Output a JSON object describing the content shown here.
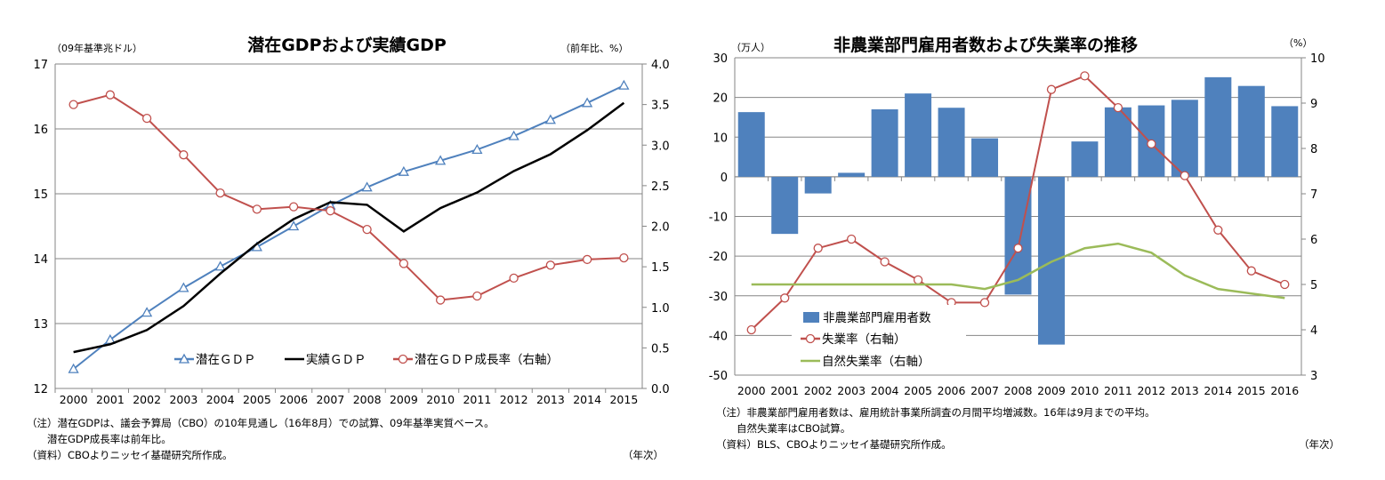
{
  "chart_data": [
    {
      "type": "line",
      "title": "潜在GDPおよび実績GDP",
      "ylabel_left": "（09年基準兆ドル）",
      "ylabel_right": "（前年比、%）",
      "xlabel": "（年次）",
      "categories": [
        "2000",
        "2001",
        "2002",
        "2003",
        "2004",
        "2005",
        "2006",
        "2007",
        "2008",
        "2009",
        "2010",
        "2011",
        "2012",
        "2013",
        "2014",
        "2015"
      ],
      "ylim_left": [
        12,
        17
      ],
      "yticks_left": [
        "12",
        "13",
        "14",
        "15",
        "16",
        "17"
      ],
      "ylim_right": [
        0,
        4
      ],
      "yticks_right": [
        "0.0",
        "0.5",
        "1.0",
        "1.5",
        "2.0",
        "2.5",
        "3.0",
        "3.5",
        "4.0"
      ],
      "grid": true,
      "legend_position": "bottom-center",
      "series": [
        {
          "name": "潜在ＧＤＰ",
          "axis": "left",
          "color": "#4f81bd",
          "marker": "triangle",
          "values": [
            12.3,
            12.75,
            13.17,
            13.55,
            13.88,
            14.18,
            14.5,
            14.82,
            15.1,
            15.34,
            15.51,
            15.68,
            15.89,
            16.14,
            16.4,
            16.67
          ]
        },
        {
          "name": "実績ＧＤＰ",
          "axis": "left",
          "color": "#000000",
          "marker": "none",
          "values": [
            12.56,
            12.68,
            12.9,
            13.27,
            13.77,
            14.23,
            14.61,
            14.87,
            14.83,
            14.42,
            14.78,
            15.02,
            15.35,
            15.61,
            15.98,
            16.4
          ]
        },
        {
          "name": "潜在ＧＤＰ成長率（右軸）",
          "axis": "right",
          "color": "#c0504d",
          "marker": "circle",
          "values": [
            3.5,
            3.62,
            3.33,
            2.88,
            2.41,
            2.21,
            2.24,
            2.19,
            1.96,
            1.54,
            1.09,
            1.14,
            1.36,
            1.52,
            1.59,
            1.61
          ]
        }
      ],
      "notes": [
        "（注）潜在GDPは、議会予算局（CBO）の10年見通し（16年8月）での試算、09年基準実質ベース。",
        "　　潜在GDP成長率は前年比。",
        "（資料）CBOよりニッセイ基礎研究所作成。"
      ]
    },
    {
      "type": "bar+line",
      "title": "非農業部門雇用者数および失業率の推移",
      "ylabel_left": "（万人）",
      "ylabel_right": "（%）",
      "xlabel": "（年次）",
      "categories": [
        "2000",
        "2001",
        "2002",
        "2003",
        "2004",
        "2005",
        "2006",
        "2007",
        "2008",
        "2009",
        "2010",
        "2011",
        "2012",
        "2013",
        "2014",
        "2015",
        "2016"
      ],
      "ylim_left": [
        -50,
        30
      ],
      "yticks_left": [
        "-50",
        "-40",
        "-30",
        "-20",
        "-10",
        "0",
        "10",
        "20",
        "30"
      ],
      "ylim_right": [
        3,
        10
      ],
      "yticks_right": [
        "3",
        "4",
        "5",
        "6",
        "7",
        "8",
        "9",
        "10"
      ],
      "grid": true,
      "legend_position": "bottom-left",
      "series": [
        {
          "name": "非農業部門雇用者数",
          "type": "bar",
          "axis": "left",
          "color": "#4f81bd",
          "values": [
            16.3,
            -14.4,
            -4.2,
            1.0,
            17.0,
            21.0,
            17.4,
            9.7,
            -29.7,
            -42.3,
            8.9,
            17.5,
            18.0,
            19.4,
            25.1,
            22.9,
            17.8
          ]
        },
        {
          "name": "失業率（右軸）",
          "type": "line",
          "axis": "right",
          "color": "#c0504d",
          "marker": "circle",
          "values": [
            4.0,
            4.7,
            5.8,
            6.0,
            5.5,
            5.1,
            4.6,
            4.6,
            5.8,
            9.3,
            9.6,
            8.9,
            8.1,
            7.4,
            6.2,
            5.3,
            5.0
          ]
        },
        {
          "name": "自然失業率（右軸）",
          "type": "line",
          "axis": "right",
          "color": "#9bbb59",
          "marker": "none",
          "values": [
            5.0,
            5.0,
            5.0,
            5.0,
            5.0,
            5.0,
            5.0,
            4.9,
            5.1,
            5.5,
            5.8,
            5.9,
            5.7,
            5.2,
            4.9,
            4.8,
            4.7
          ]
        }
      ],
      "notes": [
        "（注）非農業部門雇用者数は、雇用統計事業所調査の月間平均増減数。16年は9月までの平均。",
        "　　自然失業率はCBO試算。",
        "（資料）BLS、CBOよりニッセイ基礎研究所作成。"
      ]
    }
  ]
}
